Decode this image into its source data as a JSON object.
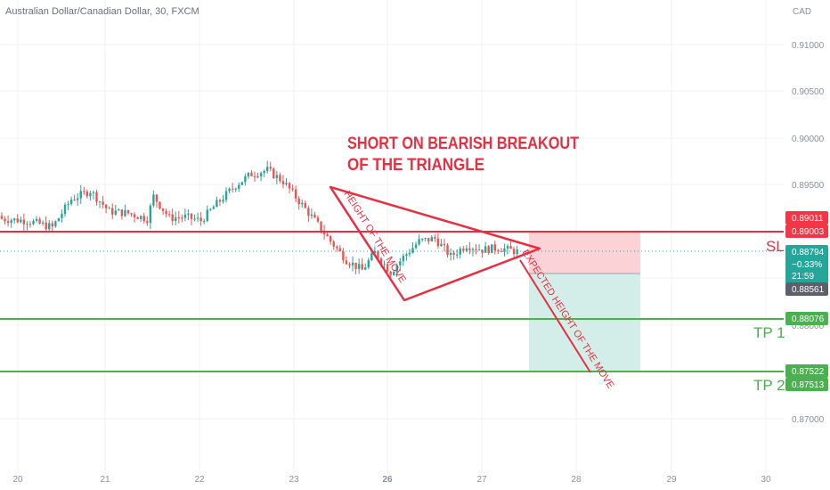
{
  "chart_data": {
    "type": "candlestick",
    "title": "Australian Dollar/Canadian Dollar, 30, FXCM",
    "currency": "CAD",
    "y_axis": {
      "ticks": [
        "0.91000",
        "0.90500",
        "0.90000",
        "0.89500",
        "0.88000",
        "0.87000"
      ],
      "tick_values": [
        0.91,
        0.905,
        0.9,
        0.895,
        0.88,
        0.87
      ]
    },
    "x_axis": {
      "ticks": [
        "20",
        "21",
        "22",
        "23",
        "26",
        "27",
        "28",
        "29",
        "30"
      ],
      "bold_ticks": [
        "26"
      ]
    },
    "price_labels": {
      "sl_upper": {
        "text": "0.89011",
        "value": 0.89011,
        "color": "#f23645"
      },
      "sl": {
        "text": "0.89003",
        "value": 0.89003,
        "color": "#f23645"
      },
      "last": {
        "text": "0.88794",
        "value": 0.88794,
        "color": "#26a69a"
      },
      "change": {
        "text": "−0.33%"
      },
      "countdown": {
        "text": "21:59"
      },
      "entry": {
        "text": "0.88561",
        "value": 0.88561,
        "color": "#5d606b"
      },
      "tp1": {
        "text": "0.88076",
        "value": 0.88076,
        "color": "#4caf50"
      },
      "tp2_upper": {
        "text": "0.87522",
        "value": 0.87522,
        "color": "#4caf50"
      },
      "tp2": {
        "text": "0.87513",
        "value": 0.87513,
        "color": "#4caf50"
      }
    },
    "annotations": {
      "headline_line1": "SHORT ON BEARISH BREAKOUT",
      "headline_line2": "OF THE TRIANGLE",
      "height_label": "HEIGHT OF THE MOVE",
      "expected_label": "EXPECTED HEIGHT OF THE MOVE",
      "sl_label": "SL",
      "tp1_label": "TP 1",
      "tp2_label": "TP 2"
    },
    "colors": {
      "up": "#26a69a",
      "down": "#ef5350",
      "annotation": "#e53043",
      "tp": "#4caf50",
      "risk_zone": "#fbd2d6",
      "reward_zone": "#d3eee8"
    },
    "candle_waypoints": [
      [
        0,
        0.8914
      ],
      [
        8,
        0.8912
      ],
      [
        16,
        0.8905
      ],
      [
        22,
        0.8935
      ],
      [
        28,
        0.8944
      ],
      [
        34,
        0.8922
      ],
      [
        40,
        0.892
      ],
      [
        46,
        0.8914
      ],
      [
        48,
        0.8938
      ],
      [
        53,
        0.8915
      ],
      [
        58,
        0.8916
      ],
      [
        63,
        0.8912
      ],
      [
        68,
        0.893
      ],
      [
        74,
        0.895
      ],
      [
        79,
        0.8962
      ],
      [
        84,
        0.8966
      ],
      [
        89,
        0.8954
      ],
      [
        94,
        0.8933
      ],
      [
        99,
        0.8912
      ],
      [
        104,
        0.889
      ],
      [
        109,
        0.887
      ],
      [
        114,
        0.8859
      ],
      [
        118,
        0.8878
      ],
      [
        123,
        0.8857
      ],
      [
        127,
        0.8873
      ],
      [
        132,
        0.889
      ],
      [
        137,
        0.8893
      ],
      [
        142,
        0.8874
      ],
      [
        147,
        0.8886
      ],
      [
        152,
        0.8881
      ],
      [
        157,
        0.8883
      ],
      [
        163,
        0.8879
      ]
    ]
  }
}
